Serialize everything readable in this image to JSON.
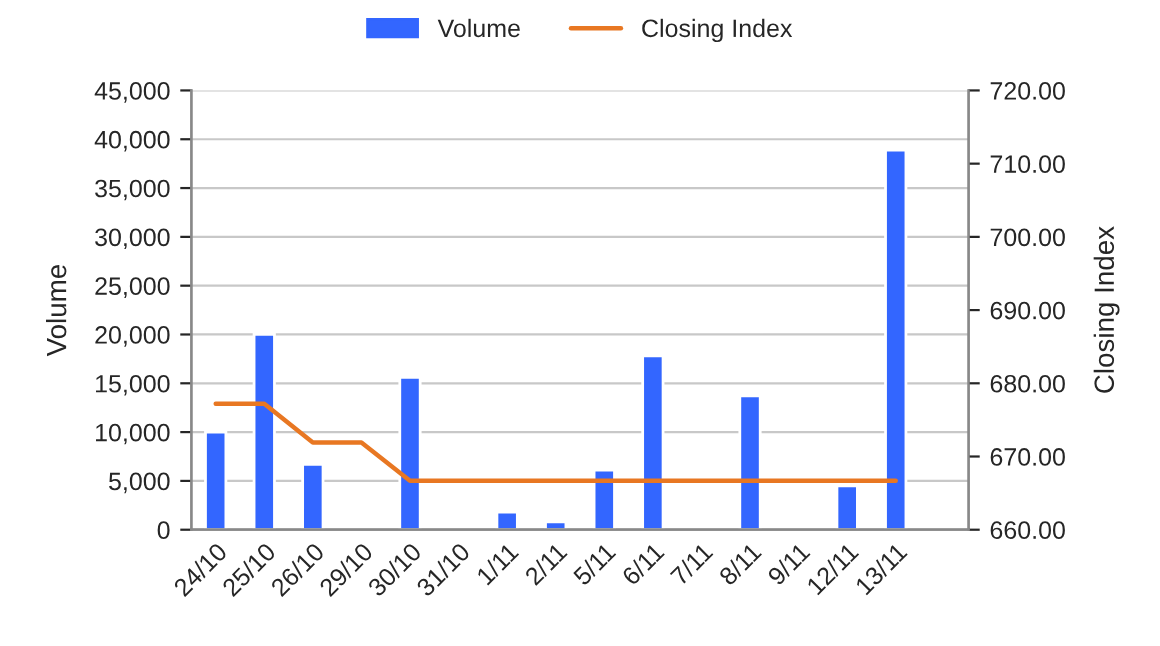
{
  "chart_data": {
    "type": "bar",
    "xlabel": null,
    "ylabel": "Volume",
    "y2label": "Closing Index",
    "categories": [
      "24/10",
      "25/10",
      "26/10",
      "29/10",
      "30/10",
      "31/10",
      "1/11",
      "2/11",
      "5/11",
      "6/11",
      "7/11",
      "8/11",
      "9/11",
      "12/11",
      "13/11",
      null
    ],
    "series": [
      {
        "name": "Volume",
        "color": "#3366ff",
        "values": [
          10000,
          20000,
          6700,
          null,
          15600,
          null,
          1800,
          800,
          6100,
          17800,
          null,
          13700,
          null,
          4500,
          38900,
          null
        ]
      },
      {
        "name": "Closing Index",
        "type": "line",
        "axis": "y2",
        "color": "#e87722",
        "values": [
          677.2,
          677.2,
          671.9,
          671.9,
          666.7,
          666.7,
          666.7,
          666.7,
          666.7,
          666.7,
          666.7,
          666.7,
          666.7,
          666.7,
          666.7,
          null
        ]
      }
    ],
    "ylim": [
      0,
      45000
    ],
    "yticks": [
      {
        "value": 0,
        "label": "0"
      },
      {
        "value": 5000,
        "label": "5,000"
      },
      {
        "value": 10000,
        "label": "10,000"
      },
      {
        "value": 15000,
        "label": "15,000"
      },
      {
        "value": 20000,
        "label": "20,000"
      },
      {
        "value": 25000,
        "label": "25,000"
      },
      {
        "value": 30000,
        "label": "30,000"
      },
      {
        "value": 35000,
        "label": "35,000"
      },
      {
        "value": 40000,
        "label": "40,000"
      },
      {
        "value": 45000,
        "label": "45,000"
      }
    ],
    "y2lim": [
      660,
      720
    ],
    "y2ticks": [
      {
        "value": 660,
        "label": "660.00"
      },
      {
        "value": 670,
        "label": "670.00"
      },
      {
        "value": 680,
        "label": "680.00"
      },
      {
        "value": 690,
        "label": "690.00"
      },
      {
        "value": 700,
        "label": "700.00"
      },
      {
        "value": 710,
        "label": "710.00"
      },
      {
        "value": 720,
        "label": "720.00"
      }
    ],
    "grid": "y",
    "legend": "top",
    "marker": "none",
    "line_style": "solid"
  }
}
